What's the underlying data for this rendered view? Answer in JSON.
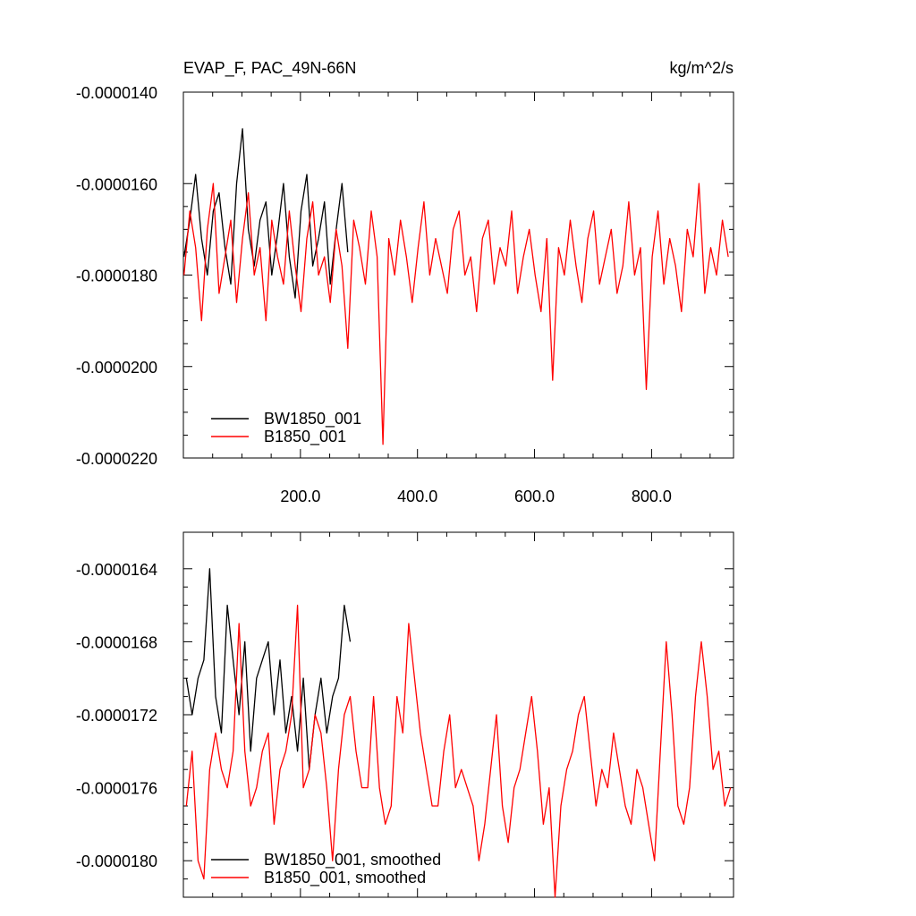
{
  "chart_data": [
    {
      "type": "line",
      "title": "EVAP_F, PAC_49N-66N",
      "units": "kg/m^2/s",
      "xlim": [
        0,
        940
      ],
      "ylim": [
        -2.2e-05,
        -1.4e-05
      ],
      "ytick_values": [
        -1.4e-05,
        -1.6e-05,
        -1.8e-05,
        -2e-05,
        -2.2e-05
      ],
      "ytick_labels": [
        "-0.0000140",
        "-0.0000160",
        "-0.0000180",
        "-0.0000200",
        "-0.0000220"
      ],
      "xtick_values": [
        200,
        400,
        600,
        800
      ],
      "xtick_labels": [
        "200.0",
        "400.0",
        "600.0",
        "800.0"
      ],
      "legend": "bottom-left",
      "grid": false,
      "series": [
        {
          "name": "BW1850_001",
          "color": "#000000",
          "x_start": 1,
          "x_step": 10,
          "values": [
            -1.76e-05,
            -1.68e-05,
            -1.58e-05,
            -1.72e-05,
            -1.8e-05,
            -1.66e-05,
            -1.62e-05,
            -1.74e-05,
            -1.82e-05,
            -1.6e-05,
            -1.48e-05,
            -1.7e-05,
            -1.78e-05,
            -1.68e-05,
            -1.64e-05,
            -1.8e-05,
            -1.71e-05,
            -1.6e-05,
            -1.76e-05,
            -1.85e-05,
            -1.66e-05,
            -1.58e-05,
            -1.78e-05,
            -1.72e-05,
            -1.64e-05,
            -1.82e-05,
            -1.7e-05,
            -1.6e-05,
            -1.75e-05
          ]
        },
        {
          "name": "B1850_001",
          "color": "#ff0000",
          "x_start": 1,
          "x_step": 10,
          "values": [
            -1.8e-05,
            -1.66e-05,
            -1.74e-05,
            -1.9e-05,
            -1.7e-05,
            -1.6e-05,
            -1.84e-05,
            -1.76e-05,
            -1.68e-05,
            -1.86e-05,
            -1.72e-05,
            -1.62e-05,
            -1.8e-05,
            -1.74e-05,
            -1.9e-05,
            -1.68e-05,
            -1.76e-05,
            -1.82e-05,
            -1.66e-05,
            -1.78e-05,
            -1.88e-05,
            -1.72e-05,
            -1.64e-05,
            -1.8e-05,
            -1.76e-05,
            -1.86e-05,
            -1.7e-05,
            -1.78e-05,
            -1.96e-05,
            -1.68e-05,
            -1.74e-05,
            -1.82e-05,
            -1.66e-05,
            -1.76e-05,
            -2.17e-05,
            -1.72e-05,
            -1.8e-05,
            -1.68e-05,
            -1.76e-05,
            -1.86e-05,
            -1.74e-05,
            -1.64e-05,
            -1.8e-05,
            -1.72e-05,
            -1.78e-05,
            -1.84e-05,
            -1.7e-05,
            -1.66e-05,
            -1.8e-05,
            -1.76e-05,
            -1.88e-05,
            -1.72e-05,
            -1.68e-05,
            -1.82e-05,
            -1.74e-05,
            -1.78e-05,
            -1.66e-05,
            -1.84e-05,
            -1.76e-05,
            -1.7e-05,
            -1.8e-05,
            -1.88e-05,
            -1.72e-05,
            -2.03e-05,
            -1.74e-05,
            -1.8e-05,
            -1.68e-05,
            -1.78e-05,
            -1.86e-05,
            -1.72e-05,
            -1.66e-05,
            -1.82e-05,
            -1.76e-05,
            -1.7e-05,
            -1.84e-05,
            -1.78e-05,
            -1.64e-05,
            -1.8e-05,
            -1.74e-05,
            -2.05e-05,
            -1.76e-05,
            -1.66e-05,
            -1.82e-05,
            -1.72e-05,
            -1.78e-05,
            -1.88e-05,
            -1.7e-05,
            -1.76e-05,
            -1.6e-05,
            -1.84e-05,
            -1.74e-05,
            -1.8e-05,
            -1.68e-05,
            -1.76e-05
          ]
        }
      ]
    },
    {
      "type": "line",
      "xlim": [
        0,
        940
      ],
      "ylim": [
        -1.82e-05,
        -1.62e-05
      ],
      "ytick_values": [
        -1.64e-05,
        -1.68e-05,
        -1.72e-05,
        -1.76e-05,
        -1.8e-05
      ],
      "ytick_labels": [
        "-0.0000164",
        "-0.0000168",
        "-0.0000172",
        "-0.0000176",
        "-0.0000180"
      ],
      "legend": "bottom-left",
      "grid": false,
      "series": [
        {
          "name": "BW1850_001, smoothed",
          "color": "#000000",
          "x_start": 5,
          "x_step": 10,
          "values": [
            -1.7e-05,
            -1.72e-05,
            -1.7e-05,
            -1.69e-05,
            -1.64e-05,
            -1.71e-05,
            -1.73e-05,
            -1.66e-05,
            -1.69e-05,
            -1.72e-05,
            -1.68e-05,
            -1.74e-05,
            -1.7e-05,
            -1.69e-05,
            -1.68e-05,
            -1.72e-05,
            -1.69e-05,
            -1.73e-05,
            -1.71e-05,
            -1.74e-05,
            -1.7e-05,
            -1.75e-05,
            -1.72e-05,
            -1.7e-05,
            -1.73e-05,
            -1.71e-05,
            -1.7e-05,
            -1.66e-05,
            -1.68e-05
          ]
        },
        {
          "name": "B1850_001, smoothed",
          "color": "#ff0000",
          "x_start": 5,
          "x_step": 10,
          "values": [
            -1.77e-05,
            -1.74e-05,
            -1.8e-05,
            -1.81e-05,
            -1.75e-05,
            -1.73e-05,
            -1.75e-05,
            -1.76e-05,
            -1.74e-05,
            -1.67e-05,
            -1.74e-05,
            -1.77e-05,
            -1.76e-05,
            -1.74e-05,
            -1.73e-05,
            -1.78e-05,
            -1.75e-05,
            -1.74e-05,
            -1.72e-05,
            -1.66e-05,
            -1.76e-05,
            -1.75e-05,
            -1.72e-05,
            -1.73e-05,
            -1.76e-05,
            -1.8e-05,
            -1.75e-05,
            -1.72e-05,
            -1.71e-05,
            -1.74e-05,
            -1.76e-05,
            -1.76e-05,
            -1.71e-05,
            -1.76e-05,
            -1.78e-05,
            -1.77e-05,
            -1.71e-05,
            -1.73e-05,
            -1.67e-05,
            -1.7e-05,
            -1.73e-05,
            -1.75e-05,
            -1.77e-05,
            -1.77e-05,
            -1.74e-05,
            -1.72e-05,
            -1.76e-05,
            -1.75e-05,
            -1.76e-05,
            -1.77e-05,
            -1.8e-05,
            -1.78e-05,
            -1.75e-05,
            -1.72e-05,
            -1.77e-05,
            -1.79e-05,
            -1.76e-05,
            -1.75e-05,
            -1.73e-05,
            -1.71e-05,
            -1.74e-05,
            -1.78e-05,
            -1.76e-05,
            -1.82e-05,
            -1.77e-05,
            -1.75e-05,
            -1.74e-05,
            -1.72e-05,
            -1.71e-05,
            -1.74e-05,
            -1.77e-05,
            -1.75e-05,
            -1.76e-05,
            -1.73e-05,
            -1.75e-05,
            -1.77e-05,
            -1.78e-05,
            -1.75e-05,
            -1.76e-05,
            -1.78e-05,
            -1.8e-05,
            -1.74e-05,
            -1.68e-05,
            -1.72e-05,
            -1.77e-05,
            -1.78e-05,
            -1.76e-05,
            -1.71e-05,
            -1.68e-05,
            -1.71e-05,
            -1.75e-05,
            -1.74e-05,
            -1.77e-05,
            -1.76e-05
          ]
        }
      ]
    }
  ]
}
